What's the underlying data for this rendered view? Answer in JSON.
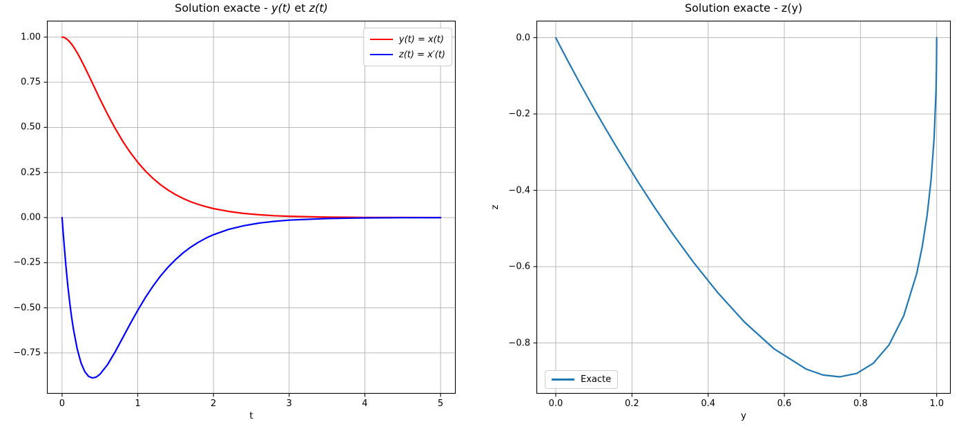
{
  "chart_data": [
    {
      "type": "line",
      "title": "Solution exacte - y(t) et z(t)",
      "title_parts": {
        "prefix": "Solution exacte - ",
        "math1": "y(t)",
        "mid": " et ",
        "math2": "z(t)"
      },
      "xlabel": "t",
      "ylabel": "",
      "xlim": [
        -0.2,
        5.2
      ],
      "ylim": [
        -0.976,
        1.091
      ],
      "grid": true,
      "legend_position": "upper right",
      "xticks": [
        0,
        1,
        2,
        3,
        4,
        5
      ],
      "xtick_labels": [
        "0",
        "1",
        "2",
        "3",
        "4",
        "5"
      ],
      "yticks": [
        1.0,
        0.75,
        0.5,
        0.25,
        0.0,
        -0.25,
        -0.5,
        -0.75
      ],
      "ytick_labels": [
        "1.00",
        "0.75",
        "0.50",
        "0.25",
        "0.00",
        "−0.25",
        "−0.50",
        "−0.75"
      ],
      "x": [
        0,
        0.0125,
        0.025,
        0.05,
        0.075,
        0.1,
        0.125,
        0.15,
        0.2,
        0.25,
        0.3,
        0.35,
        0.4,
        0.45,
        0.5,
        0.6,
        0.7,
        0.8,
        0.9,
        1.0,
        1.1,
        1.2,
        1.3,
        1.4,
        1.5,
        1.6,
        1.7,
        1.8,
        1.9,
        2.0,
        2.2,
        2.4,
        2.6,
        2.8,
        3.0,
        3.5,
        4.0,
        4.5,
        5.0
      ],
      "series": [
        {
          "name": "y(t) = x(t)",
          "color": "#ff0000",
          "values": [
            1.0,
            0.9995,
            0.9982,
            0.9931,
            0.9851,
            0.9746,
            0.9618,
            0.9472,
            0.9133,
            0.8749,
            0.8333,
            0.7899,
            0.7456,
            0.7012,
            0.6574,
            0.573,
            0.4949,
            0.4243,
            0.3615,
            0.3064,
            0.2586,
            0.2175,
            0.1823,
            0.1524,
            0.1271,
            0.1058,
            0.0879,
            0.0729,
            0.0604,
            0.05,
            0.0341,
            0.0232,
            0.0157,
            0.0106,
            0.0072,
            0.0027,
            0.001,
            0.0004,
            0.0001
          ]
        },
        {
          "name": "z(t) = x′(t)",
          "color": "#0000ff",
          "values": [
            0.0,
            -0.0727,
            -0.1409,
            -0.2648,
            -0.3732,
            -0.4675,
            -0.5491,
            -0.6191,
            -0.7291,
            -0.805,
            -0.8535,
            -0.8799,
            -0.8888,
            -0.884,
            -0.8685,
            -0.8154,
            -0.7448,
            -0.6671,
            -0.5886,
            -0.5133,
            -0.4435,
            -0.3804,
            -0.3242,
            -0.2749,
            -0.2321,
            -0.1952,
            -0.1637,
            -0.1368,
            -0.1141,
            -0.095,
            -0.0655,
            -0.0449,
            -0.0306,
            -0.0208,
            -0.0141,
            -0.0053,
            -0.002,
            -0.0007,
            -0.0003
          ]
        }
      ]
    },
    {
      "type": "line",
      "title": "Solution exacte - z(y)",
      "xlabel": "y",
      "ylabel": "z",
      "xlim": [
        -0.0507,
        1.0368
      ],
      "ylim": [
        -0.933,
        0.0444
      ],
      "grid": true,
      "legend_position": "lower left",
      "xticks": [
        0.0,
        0.2,
        0.4,
        0.6,
        0.8,
        1.0
      ],
      "xtick_labels": [
        "0.0",
        "0.2",
        "0.4",
        "0.6",
        "0.8",
        "1.0"
      ],
      "yticks": [
        0.0,
        -0.2,
        -0.4,
        -0.6,
        -0.8
      ],
      "ytick_labels": [
        "0.0",
        "−0.2",
        "−0.4",
        "−0.6",
        "−0.8"
      ],
      "series": [
        {
          "name": "Exacte",
          "color": "#1f77b4",
          "x": [
            1.0,
            0.9995,
            0.9982,
            0.9931,
            0.9851,
            0.9746,
            0.9618,
            0.9472,
            0.9133,
            0.8749,
            0.8333,
            0.7899,
            0.7456,
            0.7012,
            0.6574,
            0.573,
            0.4949,
            0.4243,
            0.3615,
            0.3064,
            0.2586,
            0.2175,
            0.1823,
            0.1524,
            0.1271,
            0.1058,
            0.0879,
            0.0729,
            0.0604,
            0.05,
            0.0341,
            0.0232,
            0.0157,
            0.0106,
            0.0072,
            0.0027,
            0.001,
            0.0004,
            0.0001
          ],
          "values": [
            0.0,
            -0.0727,
            -0.1409,
            -0.2648,
            -0.3732,
            -0.4675,
            -0.5491,
            -0.6191,
            -0.7291,
            -0.805,
            -0.8535,
            -0.8799,
            -0.8888,
            -0.884,
            -0.8685,
            -0.8154,
            -0.7448,
            -0.6671,
            -0.5886,
            -0.5133,
            -0.4435,
            -0.3804,
            -0.3242,
            -0.2749,
            -0.2321,
            -0.1952,
            -0.1637,
            -0.1368,
            -0.1141,
            -0.095,
            -0.0655,
            -0.0449,
            -0.0306,
            -0.0208,
            -0.0141,
            -0.0053,
            -0.002,
            -0.0007,
            -0.0003
          ]
        }
      ]
    }
  ]
}
